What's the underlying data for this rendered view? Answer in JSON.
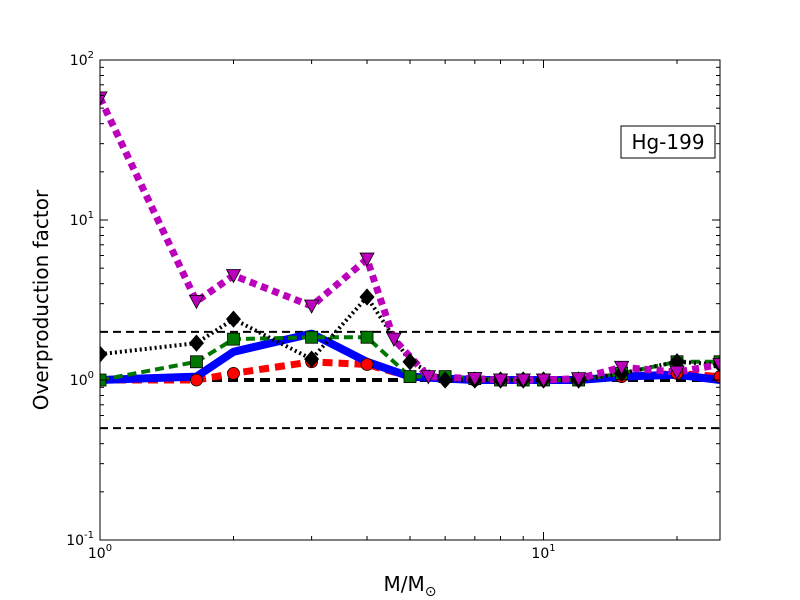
{
  "chart_data": {
    "type": "line",
    "title": "",
    "annotation": "Hg-199",
    "xlabel": "M/M",
    "xlabel_subscript": "⊙",
    "ylabel": "Overproduction factor",
    "xscale": "log",
    "yscale": "log",
    "xlim": [
      1,
      25
    ],
    "ylim": [
      0.1,
      100
    ],
    "x_ticks": [
      {
        "value": 1,
        "base": "10",
        "exp": "0"
      },
      {
        "value": 10,
        "base": "10",
        "exp": "1"
      }
    ],
    "y_ticks": [
      {
        "value": 0.1,
        "base": "10",
        "exp": "-1"
      },
      {
        "value": 1,
        "base": "10",
        "exp": "0"
      },
      {
        "value": 10,
        "base": "10",
        "exp": "1"
      },
      {
        "value": 100,
        "base": "10",
        "exp": "2"
      }
    ],
    "reference_lines": [
      {
        "y": 2,
        "width": 2,
        "dash": "8,5"
      },
      {
        "y": 1,
        "width": 4,
        "dash": "10,6"
      },
      {
        "y": 0.5,
        "width": 2,
        "dash": "8,5"
      }
    ],
    "series": [
      {
        "color": "#ff0000",
        "marker": "circle",
        "width": 7,
        "dash": "10,6",
        "x": [
          1.0,
          1.65,
          2.0,
          3.0,
          4.0,
          5.0,
          6.0,
          7.0,
          8.0,
          9.0,
          10.0,
          12.0,
          15.0,
          20.0,
          25.0
        ],
        "y": [
          1.0,
          1.0,
          1.1,
          1.3,
          1.25,
          1.05,
          1.02,
          1.0,
          1.0,
          1.0,
          1.0,
          1.0,
          1.05,
          1.1,
          1.05
        ]
      },
      {
        "color": "#0000ff",
        "marker": "none",
        "width": 8,
        "dash": "",
        "x": [
          1.0,
          1.65,
          2.0,
          3.0,
          4.0,
          5.0,
          6.0,
          7.0,
          8.0,
          9.0,
          10.0,
          12.0,
          15.0,
          20.0,
          25.0
        ],
        "y": [
          1.0,
          1.05,
          1.5,
          1.95,
          1.3,
          1.05,
          1.02,
          1.0,
          1.0,
          1.0,
          1.0,
          1.0,
          1.05,
          1.08,
          1.0
        ]
      },
      {
        "color": "#007700",
        "marker": "square",
        "width": 4,
        "dash": "9,5",
        "x": [
          1.0,
          1.65,
          2.0,
          3.0,
          4.0,
          5.0,
          6.0,
          7.0,
          8.0,
          9.0,
          10.0,
          12.0,
          15.0,
          20.0,
          25.0
        ],
        "y": [
          1.0,
          1.3,
          1.8,
          1.85,
          1.85,
          1.05,
          1.05,
          1.02,
          1.0,
          1.0,
          1.0,
          1.0,
          1.1,
          1.3,
          1.3
        ]
      },
      {
        "color": "#000000",
        "marker": "diamond",
        "width": 4,
        "dash": "2,3",
        "x": [
          1.0,
          1.65,
          2.0,
          3.0,
          4.0,
          5.0,
          6.0,
          7.0,
          8.0,
          9.0,
          10.0,
          12.0,
          15.0,
          20.0,
          25.0
        ],
        "y": [
          1.45,
          1.7,
          2.4,
          1.35,
          3.3,
          1.3,
          1.0,
          1.0,
          1.0,
          1.0,
          1.0,
          1.0,
          1.1,
          1.3,
          1.25
        ]
      },
      {
        "color": "#bb00bb",
        "marker": "triangle-down",
        "width": 7,
        "dash": "7,5",
        "x": [
          1.0,
          1.65,
          2.0,
          3.0,
          4.0,
          4.6,
          5.5,
          7.0,
          8.0,
          9.0,
          10.0,
          12.0,
          15.0,
          20.0,
          25.0
        ],
        "y": [
          58.0,
          3.1,
          4.5,
          2.9,
          5.7,
          1.8,
          1.05,
          1.02,
          1.0,
          1.0,
          1.0,
          1.02,
          1.2,
          1.12,
          1.25
        ]
      }
    ]
  }
}
